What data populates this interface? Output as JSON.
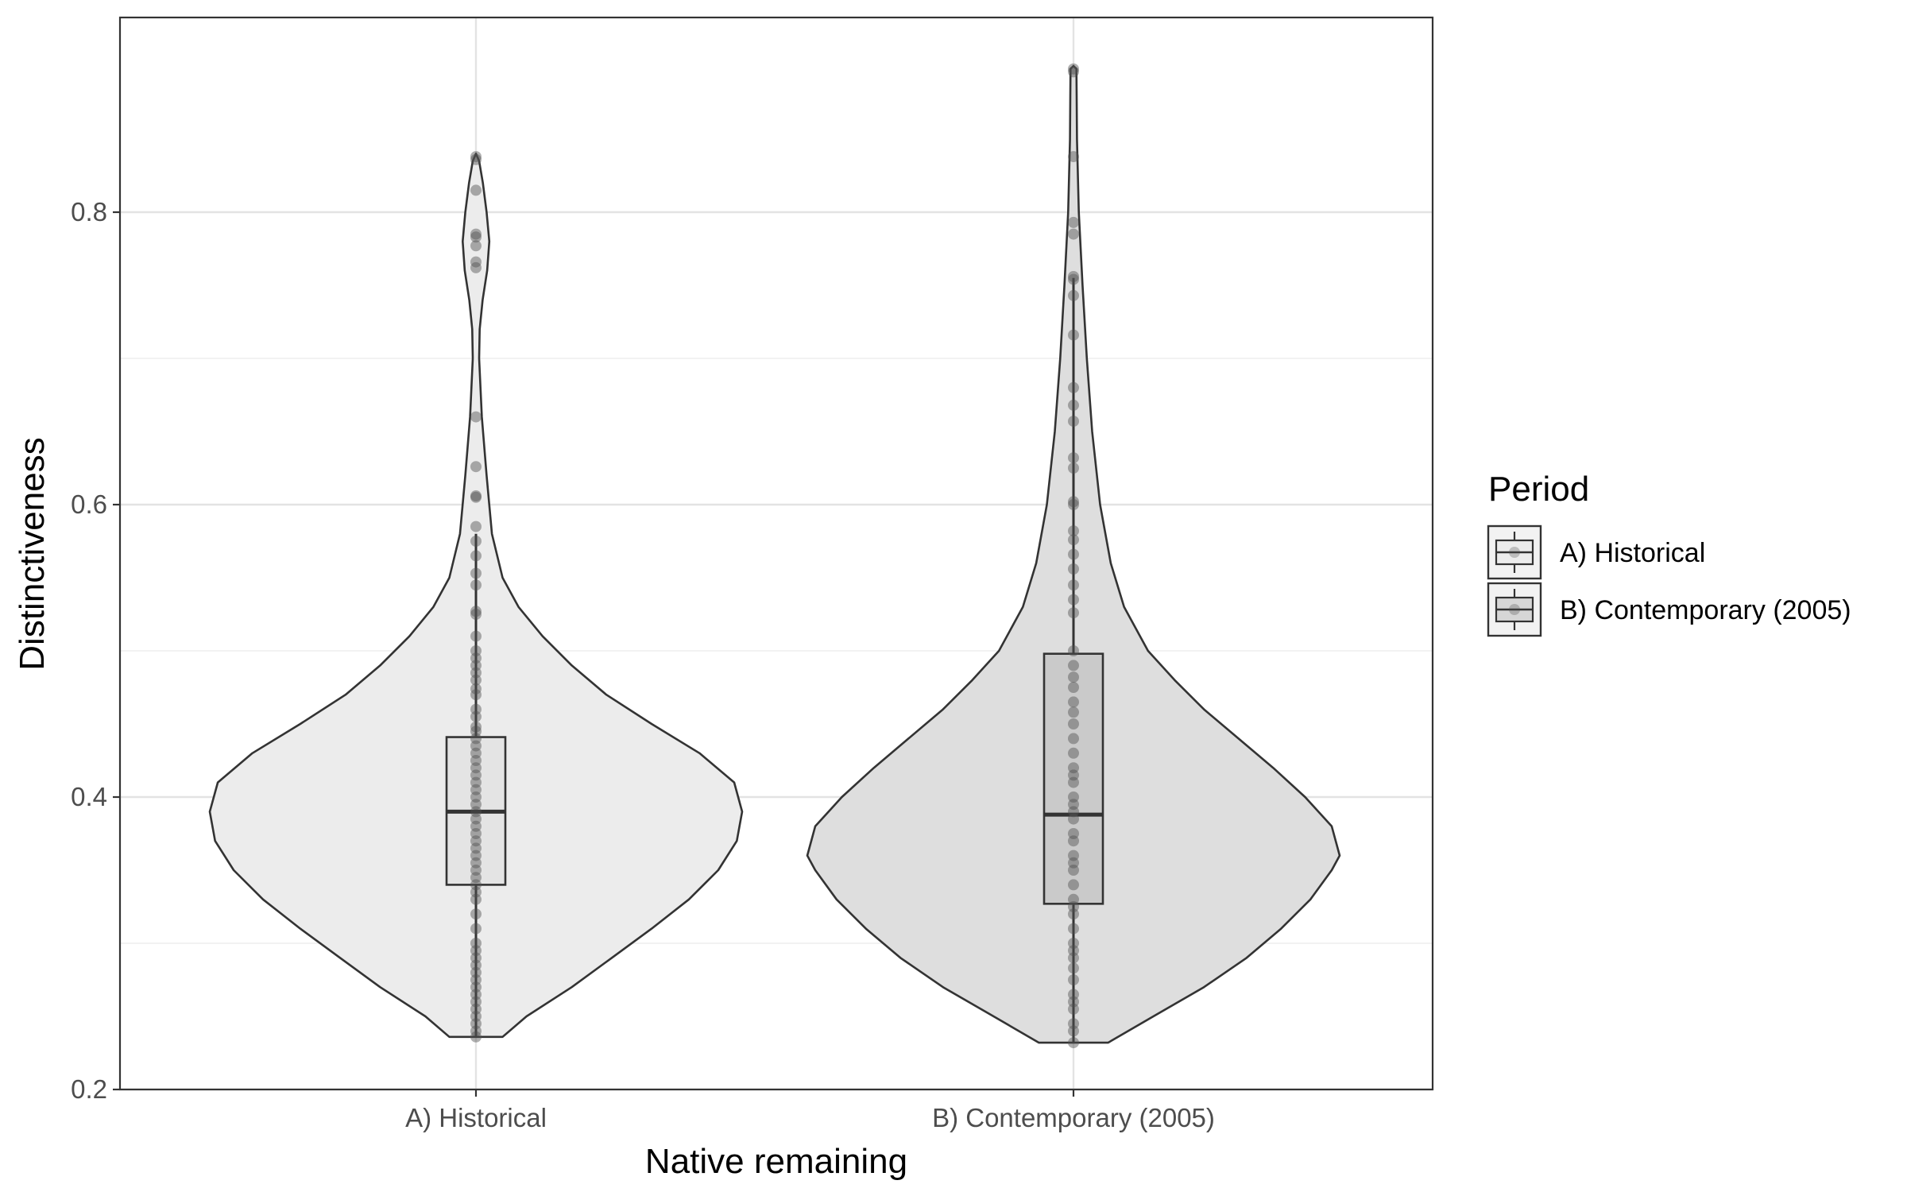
{
  "chart_data": {
    "type": "violin",
    "xlabel": "Native remaining",
    "ylabel": "Distinctiveness",
    "ylim": [
      0.2,
      0.9
    ],
    "y_ticks": [
      0.2,
      0.4,
      0.6,
      0.8
    ],
    "y_tick_labels": [
      "0.2",
      "0.4",
      "0.6",
      "0.8"
    ],
    "grid": true,
    "theme": "bw",
    "categories": [
      "A) Historical",
      "B) Contemporary (2005)"
    ],
    "legend": {
      "title": "Period",
      "position": "right",
      "entries": [
        {
          "label": "A) Historical",
          "fill": "#ececec"
        },
        {
          "label": "B) Contemporary (2005)",
          "fill": "#d6d6d6"
        }
      ]
    },
    "series": [
      {
        "name": "A) Historical",
        "violin_fill": "#ececec",
        "box_fill": "#e4e4e4",
        "box": {
          "min": 0.236,
          "q1": 0.34,
          "median": 0.39,
          "q3": 0.441,
          "max": 0.58
        },
        "density": [
          [
            0.236,
            0.1
          ],
          [
            0.25,
            0.19
          ],
          [
            0.27,
            0.36
          ],
          [
            0.29,
            0.51
          ],
          [
            0.31,
            0.66
          ],
          [
            0.33,
            0.8
          ],
          [
            0.35,
            0.91
          ],
          [
            0.37,
            0.98
          ],
          [
            0.39,
            1.0
          ],
          [
            0.41,
            0.97
          ],
          [
            0.43,
            0.84
          ],
          [
            0.45,
            0.66
          ],
          [
            0.47,
            0.49
          ],
          [
            0.49,
            0.36
          ],
          [
            0.51,
            0.25
          ],
          [
            0.53,
            0.16
          ],
          [
            0.55,
            0.1
          ],
          [
            0.58,
            0.06
          ],
          [
            0.62,
            0.04
          ],
          [
            0.66,
            0.022
          ],
          [
            0.7,
            0.012
          ],
          [
            0.72,
            0.014
          ],
          [
            0.74,
            0.025
          ],
          [
            0.76,
            0.042
          ],
          [
            0.78,
            0.05
          ],
          [
            0.8,
            0.04
          ],
          [
            0.82,
            0.026
          ],
          [
            0.835,
            0.012
          ],
          [
            0.84,
            0.0
          ]
        ],
        "points": [
          0.838,
          0.836,
          0.815,
          0.785,
          0.783,
          0.777,
          0.766,
          0.762,
          0.66,
          0.626,
          0.606,
          0.605,
          0.585,
          0.575,
          0.565,
          0.553,
          0.545,
          0.527,
          0.525,
          0.51,
          0.5,
          0.495,
          0.49,
          0.485,
          0.48,
          0.474,
          0.47,
          0.46,
          0.455,
          0.448,
          0.445,
          0.44,
          0.435,
          0.43,
          0.425,
          0.42,
          0.415,
          0.41,
          0.405,
          0.4,
          0.395,
          0.39,
          0.385,
          0.38,
          0.375,
          0.37,
          0.365,
          0.36,
          0.355,
          0.35,
          0.345,
          0.34,
          0.335,
          0.33,
          0.32,
          0.31,
          0.3,
          0.295,
          0.29,
          0.285,
          0.28,
          0.275,
          0.27,
          0.265,
          0.26,
          0.255,
          0.25,
          0.245,
          0.24,
          0.236
        ]
      },
      {
        "name": "B) Contemporary (2005)",
        "violin_fill": "#dedede",
        "box_fill": "#cacaca",
        "box": {
          "min": 0.232,
          "q1": 0.327,
          "median": 0.388,
          "q3": 0.498,
          "max": 0.755
        },
        "density": [
          [
            0.232,
            0.13
          ],
          [
            0.25,
            0.3
          ],
          [
            0.27,
            0.49
          ],
          [
            0.29,
            0.65
          ],
          [
            0.31,
            0.78
          ],
          [
            0.33,
            0.89
          ],
          [
            0.35,
            0.97
          ],
          [
            0.36,
            1.0
          ],
          [
            0.38,
            0.97
          ],
          [
            0.4,
            0.87
          ],
          [
            0.42,
            0.75
          ],
          [
            0.44,
            0.62
          ],
          [
            0.46,
            0.49
          ],
          [
            0.48,
            0.38
          ],
          [
            0.5,
            0.28
          ],
          [
            0.53,
            0.19
          ],
          [
            0.56,
            0.14
          ],
          [
            0.6,
            0.1
          ],
          [
            0.65,
            0.07
          ],
          [
            0.7,
            0.05
          ],
          [
            0.75,
            0.034
          ],
          [
            0.8,
            0.02
          ],
          [
            0.85,
            0.013
          ],
          [
            0.88,
            0.012
          ],
          [
            0.898,
            0.011
          ],
          [
            0.9,
            0.0
          ]
        ],
        "points": [
          0.898,
          0.896,
          0.838,
          0.793,
          0.785,
          0.756,
          0.754,
          0.743,
          0.716,
          0.68,
          0.668,
          0.657,
          0.632,
          0.625,
          0.602,
          0.6,
          0.582,
          0.576,
          0.566,
          0.556,
          0.545,
          0.535,
          0.526,
          0.5,
          0.49,
          0.482,
          0.475,
          0.465,
          0.458,
          0.45,
          0.44,
          0.43,
          0.42,
          0.415,
          0.41,
          0.4,
          0.395,
          0.39,
          0.385,
          0.375,
          0.37,
          0.36,
          0.355,
          0.35,
          0.34,
          0.33,
          0.325,
          0.32,
          0.31,
          0.3,
          0.295,
          0.29,
          0.283,
          0.275,
          0.265,
          0.26,
          0.255,
          0.245,
          0.24,
          0.232
        ]
      }
    ]
  }
}
